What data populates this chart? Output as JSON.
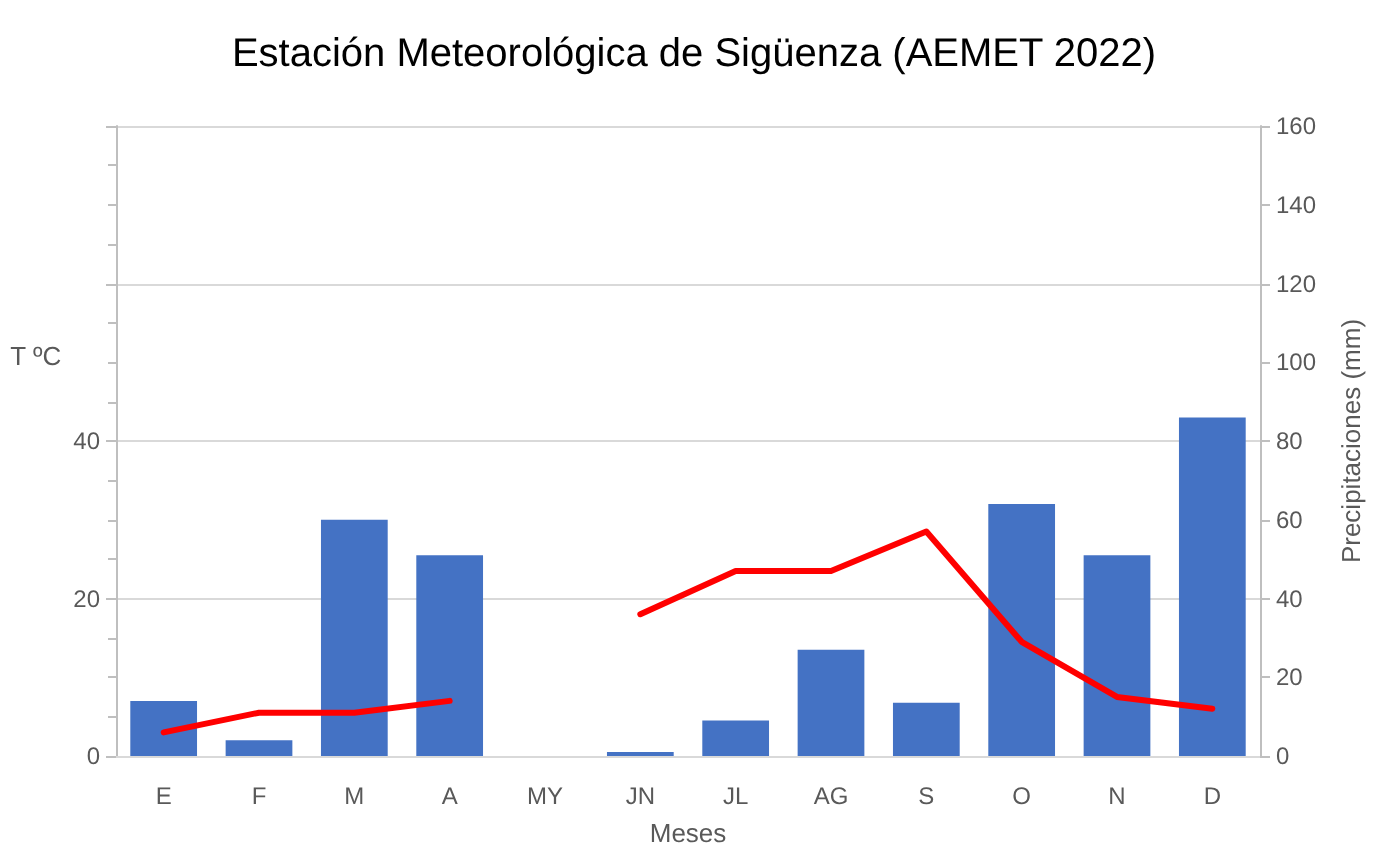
{
  "chart_data": {
    "type": "bar",
    "title": "Estación Meteorológica de Sigüenza (AEMET 2022)",
    "xlabel": "Meses",
    "ylabel": "T ºC",
    "y2label": "Precipitaciones (mm)",
    "categories": [
      "E",
      "F",
      "M",
      "A",
      "MY",
      "JN",
      "JL",
      "AG",
      "S",
      "O",
      "N",
      "D"
    ],
    "series": [
      {
        "axis": "y2",
        "color": "#4472c4",
        "values": [
          14,
          4,
          60,
          51,
          null,
          1,
          9,
          27,
          13.5,
          64,
          51,
          86
        ]
      },
      {
        "type": "line",
        "axis": "y",
        "color": "#ff0000",
        "line_style": "solid",
        "marker": "none",
        "values": [
          3,
          5.5,
          5.5,
          7,
          null,
          18,
          23.5,
          23.5,
          28.5,
          14.5,
          7.5,
          6
        ]
      }
    ],
    "ylim": [
      0,
      80
    ],
    "yticks": [
      0,
      20,
      40,
      {
        "value": 60,
        "label": null
      },
      {
        "value": 80,
        "label": null
      }
    ],
    "y2lim": [
      0,
      160
    ],
    "y2ticks": [
      0,
      20,
      40,
      60,
      80,
      100,
      120,
      140,
      160
    ],
    "grid": "y"
  }
}
